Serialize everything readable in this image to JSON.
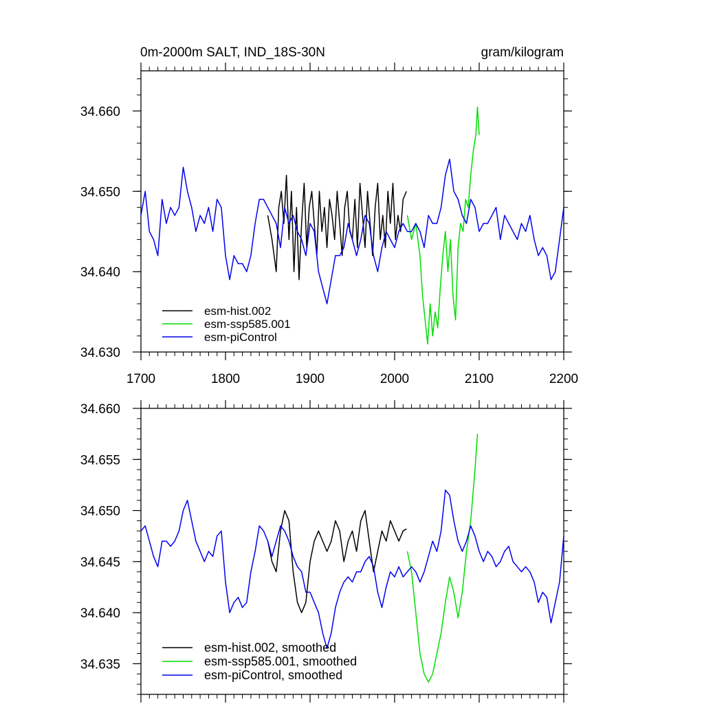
{
  "chart_data": [
    {
      "type": "line",
      "title_left": "0m-2000m SALT, IND_18S-30N",
      "title_right": "gram/kilogram",
      "xlim": [
        1700,
        2200
      ],
      "ylim": [
        34.63,
        34.665
      ],
      "x_ticks": [
        "1700",
        "1800",
        "1900",
        "2000",
        "2100",
        "2200"
      ],
      "y_ticks": [
        "34.630",
        "34.640",
        "34.650",
        "34.660"
      ],
      "legend_position": "bottom-left",
      "series": [
        {
          "name": "esm-hist.002",
          "color": "#000000",
          "x": [
            1850,
            1855,
            1860,
            1863,
            1866,
            1869,
            1872,
            1875,
            1878,
            1881,
            1884,
            1887,
            1890,
            1893,
            1896,
            1899,
            1902,
            1905,
            1908,
            1911,
            1914,
            1917,
            1920,
            1923,
            1926,
            1929,
            1932,
            1935,
            1938,
            1941,
            1944,
            1947,
            1950,
            1953,
            1956,
            1959,
            1962,
            1965,
            1968,
            1971,
            1974,
            1977,
            1980,
            1983,
            1986,
            1989,
            1992,
            1995,
            1998,
            2001,
            2004,
            2007,
            2010,
            2014
          ],
          "y": [
            34.647,
            34.644,
            34.64,
            34.648,
            34.65,
            34.646,
            34.652,
            34.644,
            34.65,
            34.64,
            34.648,
            34.639,
            34.646,
            34.651,
            34.643,
            34.648,
            34.65,
            34.646,
            34.642,
            34.65,
            34.645,
            34.648,
            34.643,
            34.649,
            34.647,
            34.644,
            34.65,
            34.646,
            34.642,
            34.648,
            34.65,
            34.645,
            34.644,
            34.649,
            34.643,
            34.651,
            34.647,
            34.643,
            34.65,
            34.646,
            34.642,
            34.648,
            34.651,
            34.644,
            34.647,
            34.643,
            34.65,
            34.646,
            34.651,
            34.644,
            34.647,
            34.645,
            34.649,
            34.65
          ]
        },
        {
          "name": "esm-ssp585.001",
          "color": "#00dd00",
          "x": [
            2015,
            2020,
            2025,
            2030,
            2033,
            2036,
            2039,
            2042,
            2045,
            2048,
            2051,
            2054,
            2057,
            2060,
            2063,
            2066,
            2069,
            2072,
            2075,
            2078,
            2081,
            2084,
            2087,
            2090,
            2093,
            2096,
            2098,
            2100
          ],
          "y": [
            34.647,
            34.644,
            34.646,
            34.642,
            34.637,
            34.634,
            34.631,
            34.636,
            34.632,
            34.635,
            34.633,
            34.638,
            34.642,
            34.645,
            34.64,
            34.644,
            34.637,
            34.634,
            34.643,
            34.646,
            34.645,
            34.649,
            34.648,
            34.652,
            34.655,
            34.657,
            34.6605,
            34.657
          ]
        },
        {
          "name": "esm-piControl",
          "color": "#0000ee",
          "x": [
            1700,
            1705,
            1710,
            1715,
            1720,
            1725,
            1730,
            1735,
            1740,
            1745,
            1750,
            1755,
            1760,
            1765,
            1770,
            1775,
            1780,
            1785,
            1790,
            1795,
            1800,
            1805,
            1810,
            1815,
            1820,
            1825,
            1830,
            1835,
            1840,
            1845,
            1850,
            1855,
            1860,
            1865,
            1870,
            1875,
            1880,
            1885,
            1890,
            1895,
            1900,
            1905,
            1910,
            1915,
            1920,
            1925,
            1930,
            1935,
            1940,
            1945,
            1950,
            1955,
            1960,
            1965,
            1970,
            1975,
            1980,
            1985,
            1990,
            1995,
            2000,
            2005,
            2010,
            2015,
            2020,
            2025,
            2030,
            2035,
            2040,
            2045,
            2050,
            2055,
            2060,
            2065,
            2070,
            2075,
            2080,
            2085,
            2090,
            2095,
            2100,
            2105,
            2110,
            2115,
            2120,
            2125,
            2130,
            2135,
            2140,
            2145,
            2150,
            2155,
            2160,
            2165,
            2170,
            2175,
            2180,
            2185,
            2190,
            2195,
            2200
          ],
          "y": [
            34.647,
            34.65,
            34.645,
            34.644,
            34.642,
            34.649,
            34.646,
            34.648,
            34.647,
            34.648,
            34.653,
            34.65,
            34.648,
            34.645,
            34.647,
            34.646,
            34.648,
            34.645,
            34.649,
            34.648,
            34.642,
            34.639,
            34.642,
            34.641,
            34.641,
            34.64,
            34.642,
            34.646,
            34.649,
            34.649,
            34.648,
            34.647,
            34.646,
            34.643,
            34.648,
            34.646,
            34.647,
            34.645,
            34.644,
            34.642,
            34.646,
            34.645,
            34.64,
            34.638,
            34.636,
            34.639,
            34.642,
            34.642,
            34.643,
            34.646,
            34.644,
            34.642,
            34.644,
            34.647,
            34.646,
            34.642,
            34.64,
            34.643,
            34.645,
            34.644,
            34.643,
            34.645,
            34.646,
            34.645,
            34.645,
            34.646,
            34.645,
            34.643,
            34.647,
            34.646,
            34.646,
            34.648,
            34.652,
            34.654,
            34.65,
            34.649,
            34.647,
            34.646,
            34.649,
            34.648,
            34.645,
            34.646,
            34.646,
            34.647,
            34.648,
            34.644,
            34.647,
            34.646,
            34.645,
            34.644,
            34.646,
            34.645,
            34.647,
            34.644,
            34.642,
            34.643,
            34.642,
            34.639,
            34.64,
            34.644,
            34.648
          ]
        }
      ]
    },
    {
      "type": "line",
      "xlim": [
        1700,
        2200
      ],
      "ylim": [
        34.632,
        34.66
      ],
      "y_ticks": [
        "34.635",
        "34.640",
        "34.645",
        "34.650",
        "34.655",
        "34.660"
      ],
      "legend_position": "bottom-left",
      "series": [
        {
          "name": "esm-hist.002, smoothed",
          "color": "#000000",
          "x": [
            1850,
            1855,
            1860,
            1865,
            1870,
            1875,
            1880,
            1885,
            1890,
            1895,
            1900,
            1905,
            1910,
            1915,
            1920,
            1925,
            1930,
            1935,
            1940,
            1945,
            1950,
            1955,
            1960,
            1965,
            1970,
            1975,
            1980,
            1985,
            1990,
            1995,
            2000,
            2005,
            2010,
            2014
          ],
          "y": [
            34.647,
            34.645,
            34.644,
            34.648,
            34.65,
            34.649,
            34.644,
            34.641,
            34.64,
            34.641,
            34.645,
            34.647,
            34.648,
            34.647,
            34.646,
            34.647,
            34.649,
            34.648,
            34.645,
            34.647,
            34.648,
            34.646,
            34.649,
            34.65,
            34.647,
            34.644,
            34.646,
            34.648,
            34.647,
            34.649,
            34.648,
            34.647,
            34.648,
            34.6482
          ]
        },
        {
          "name": "esm-ssp585.001, smoothed",
          "color": "#00dd00",
          "x": [
            2015,
            2020,
            2025,
            2030,
            2035,
            2040,
            2045,
            2050,
            2055,
            2060,
            2065,
            2070,
            2075,
            2080,
            2085,
            2090,
            2095,
            2098
          ],
          "y": [
            34.646,
            34.644,
            34.64,
            34.636,
            34.634,
            34.6332,
            34.634,
            34.636,
            34.638,
            34.641,
            34.6435,
            34.642,
            34.6395,
            34.642,
            34.646,
            34.649,
            34.654,
            34.6575
          ]
        },
        {
          "name": "esm-piControl, smoothed",
          "color": "#0000ee",
          "x": [
            1700,
            1705,
            1710,
            1715,
            1720,
            1725,
            1730,
            1735,
            1740,
            1745,
            1750,
            1755,
            1760,
            1765,
            1770,
            1775,
            1780,
            1785,
            1790,
            1795,
            1800,
            1805,
            1810,
            1815,
            1820,
            1825,
            1830,
            1835,
            1840,
            1845,
            1850,
            1855,
            1860,
            1865,
            1870,
            1875,
            1880,
            1885,
            1890,
            1895,
            1900,
            1905,
            1910,
            1915,
            1920,
            1925,
            1930,
            1935,
            1940,
            1945,
            1950,
            1955,
            1960,
            1965,
            1970,
            1975,
            1980,
            1985,
            1990,
            1995,
            2000,
            2005,
            2010,
            2015,
            2020,
            2025,
            2030,
            2035,
            2040,
            2045,
            2050,
            2055,
            2060,
            2065,
            2070,
            2075,
            2080,
            2085,
            2090,
            2095,
            2100,
            2105,
            2110,
            2115,
            2120,
            2125,
            2130,
            2135,
            2140,
            2145,
            2150,
            2155,
            2160,
            2165,
            2170,
            2175,
            2180,
            2185,
            2190,
            2195,
            2200
          ],
          "y": [
            34.648,
            34.6485,
            34.647,
            34.6455,
            34.6445,
            34.647,
            34.647,
            34.6465,
            34.647,
            34.648,
            34.65,
            34.651,
            34.649,
            34.647,
            34.646,
            34.645,
            34.646,
            34.6455,
            34.6475,
            34.648,
            34.643,
            34.64,
            34.641,
            34.6415,
            34.6405,
            34.641,
            34.644,
            34.646,
            34.6485,
            34.648,
            34.647,
            34.6455,
            34.647,
            34.6485,
            34.648,
            34.647,
            34.6455,
            34.6445,
            34.644,
            34.642,
            34.642,
            34.641,
            34.64,
            34.638,
            34.6365,
            34.638,
            34.6405,
            34.642,
            34.643,
            34.6435,
            34.643,
            34.644,
            34.644,
            34.645,
            34.6455,
            34.6445,
            34.642,
            34.6405,
            34.6425,
            34.644,
            34.6435,
            34.6445,
            34.6435,
            34.644,
            34.6445,
            34.644,
            34.643,
            34.644,
            34.6455,
            34.647,
            34.646,
            34.648,
            34.652,
            34.6515,
            34.649,
            34.647,
            34.646,
            34.647,
            34.6485,
            34.6475,
            34.646,
            34.645,
            34.646,
            34.6455,
            34.6445,
            34.645,
            34.646,
            34.6465,
            34.645,
            34.6445,
            34.644,
            34.6445,
            34.644,
            34.643,
            34.641,
            34.642,
            34.6415,
            34.639,
            34.641,
            34.643,
            34.6475
          ]
        }
      ]
    }
  ]
}
